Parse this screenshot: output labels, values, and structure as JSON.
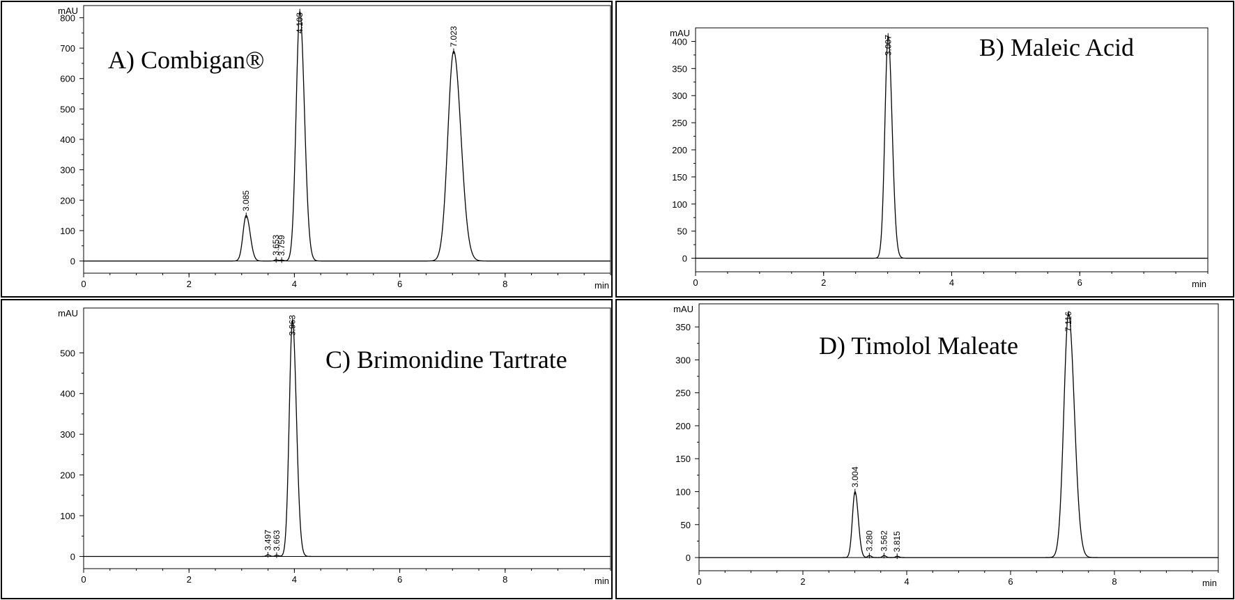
{
  "chart_data": [
    {
      "type": "line",
      "title": "A) Combigan®",
      "ylabel": "mAU",
      "xlabel": "min",
      "xlim": [
        0,
        10
      ],
      "ylim": [
        -40,
        840
      ],
      "xticks": [
        0,
        2,
        4,
        6,
        8
      ],
      "yticks": [
        0,
        100,
        200,
        300,
        400,
        500,
        600,
        700,
        800
      ],
      "peaks": [
        {
          "rt": 3.085,
          "label": "3.085",
          "height": 150,
          "width": 0.06
        },
        {
          "rt": 3.653,
          "label": "3.653",
          "height": 4,
          "width": 0.03
        },
        {
          "rt": 3.759,
          "label": "3.759",
          "height": 3,
          "width": 0.03
        },
        {
          "rt": 4.103,
          "label": "4.103",
          "height": 820,
          "width": 0.07
        },
        {
          "rt": 7.023,
          "label": "7.023",
          "height": 690,
          "width": 0.11
        }
      ]
    },
    {
      "type": "line",
      "title": "B) Maleic Acid",
      "ylabel": "mAU",
      "xlabel": "min",
      "xlim": [
        0,
        8
      ],
      "ylim": [
        -25,
        425
      ],
      "xticks": [
        0,
        2,
        4,
        6
      ],
      "yticks": [
        0,
        50,
        100,
        150,
        200,
        250,
        300,
        350,
        400
      ],
      "peaks": [
        {
          "rt": 3.007,
          "label": "3.007",
          "height": 410,
          "width": 0.05
        }
      ]
    },
    {
      "type": "line",
      "title": "C) Brimonidine Tartrate",
      "ylabel": "mAU",
      "xlabel": "min",
      "xlim": [
        0,
        10
      ],
      "ylim": [
        -30,
        610
      ],
      "xticks": [
        0,
        2,
        4,
        6,
        8
      ],
      "yticks": [
        0,
        100,
        200,
        300,
        400,
        500
      ],
      "peaks": [
        {
          "rt": 3.497,
          "label": "3.497",
          "height": 4,
          "width": 0.03
        },
        {
          "rt": 3.663,
          "label": "3.663",
          "height": 3,
          "width": 0.03
        },
        {
          "rt": 3.963,
          "label": "3.963",
          "height": 580,
          "width": 0.06
        }
      ]
    },
    {
      "type": "line",
      "title": "D) Timolol Maleate",
      "ylabel": "mAU",
      "xlabel": "min",
      "xlim": [
        0,
        10
      ],
      "ylim": [
        -20,
        385
      ],
      "xticks": [
        0,
        2,
        4,
        6,
        8
      ],
      "yticks": [
        0,
        50,
        100,
        150,
        200,
        250,
        300,
        350
      ],
      "peaks": [
        {
          "rt": 3.004,
          "label": "3.004",
          "height": 100,
          "width": 0.05
        },
        {
          "rt": 3.28,
          "label": "3.280",
          "height": 3,
          "width": 0.03
        },
        {
          "rt": 3.562,
          "label": "3.562",
          "height": 3,
          "width": 0.03
        },
        {
          "rt": 3.815,
          "label": "3.815",
          "height": 2,
          "width": 0.03
        },
        {
          "rt": 7.116,
          "label": "7.116",
          "height": 370,
          "width": 0.09
        }
      ]
    }
  ]
}
